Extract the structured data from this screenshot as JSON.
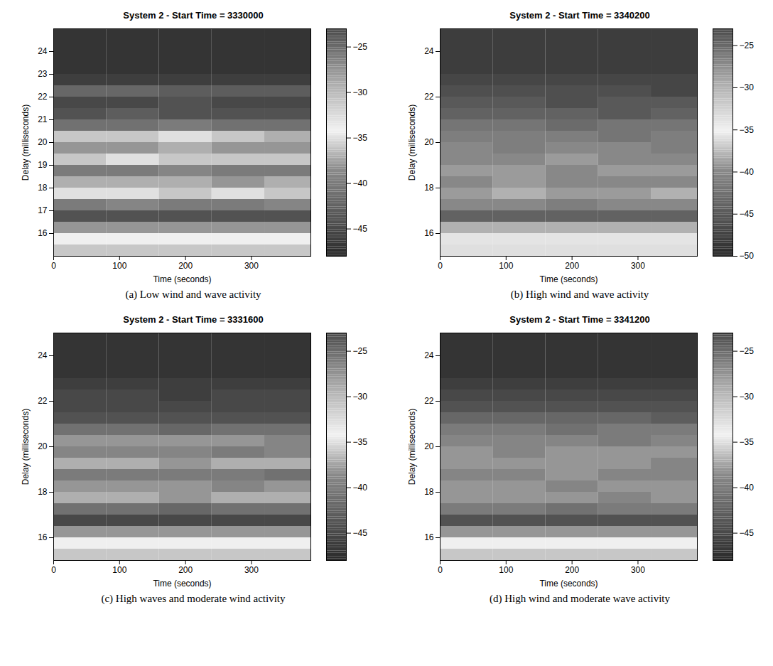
{
  "chart_data": [
    {
      "type": "heatmap",
      "title": "System 2 - Start Time = 3330000",
      "caption": "(a) Low wind and wave activity",
      "x_label": "Time (seconds)",
      "y_label": "Delay (milliseconds)",
      "xlim": [
        0,
        390
      ],
      "xticks": [
        0,
        100,
        200,
        300
      ],
      "ylim": [
        15,
        25
      ],
      "yticks": [
        16,
        17,
        18,
        19,
        20,
        21,
        22,
        23,
        24
      ],
      "x_bins": [
        0,
        80,
        160,
        240,
        320,
        390
      ],
      "y_bins": [
        15,
        15.5,
        16,
        16.5,
        17,
        17.5,
        18,
        18.5,
        19,
        19.5,
        20,
        20.5,
        21,
        21.5,
        22,
        22.5,
        23,
        23.5,
        24,
        24.5,
        25
      ],
      "cells": [
        [
          -36,
          -36,
          -36,
          -36,
          -36
        ],
        [
          -34,
          -34,
          -34,
          -34,
          -34
        ],
        [
          -38,
          -38,
          -38,
          -38,
          -38
        ],
        [
          -44,
          -44,
          -44,
          -44,
          -44
        ],
        [
          -40,
          -39,
          -40,
          -40,
          -39
        ],
        [
          -35,
          -35,
          -36,
          -35,
          -36
        ],
        [
          -37,
          -37,
          -37,
          -38,
          -37
        ],
        [
          -40,
          -40,
          -39,
          -40,
          -40
        ],
        [
          -36,
          -35,
          -36,
          -36,
          -36
        ],
        [
          -38,
          -38,
          -37,
          -38,
          -38
        ],
        [
          -36,
          -36,
          -35,
          -36,
          -37
        ],
        [
          -41,
          -41,
          -40,
          -41,
          -41
        ],
        [
          -44,
          -43,
          -44,
          -44,
          -44
        ],
        [
          -45,
          -45,
          -44,
          -45,
          -45
        ],
        [
          -42,
          -42,
          -43,
          -43,
          -43
        ],
        [
          -46,
          -46,
          -46,
          -46,
          -46
        ],
        [
          -47,
          -47,
          -47,
          -47,
          -47
        ],
        [
          -47,
          -47,
          -47,
          -47,
          -47
        ],
        [
          -47,
          -47,
          -47,
          -47,
          -47
        ],
        [
          -47,
          -47,
          -47,
          -47,
          -47
        ]
      ],
      "colorbar": {
        "range": [
          -48,
          -23
        ],
        "ticks": [
          -25,
          -30,
          -35,
          -40,
          -45
        ]
      }
    },
    {
      "type": "heatmap",
      "title": "System 2 - Start Time = 3340200",
      "caption": "(b) High wind and wave activity",
      "x_label": "Time (seconds)",
      "y_label": "Delay (milliseconds)",
      "xlim": [
        0,
        390
      ],
      "xticks": [
        0,
        100,
        200,
        300
      ],
      "ylim": [
        15,
        25
      ],
      "yticks": [
        16,
        18,
        20,
        22,
        24
      ],
      "x_bins": [
        0,
        80,
        160,
        240,
        320,
        390
      ],
      "y_bins": [
        15,
        15.5,
        16,
        16.5,
        17,
        17.5,
        18,
        18.5,
        19,
        19.5,
        20,
        20.5,
        21,
        21.5,
        22,
        22.5,
        23,
        23.5,
        24,
        24.5,
        25
      ],
      "cells": [
        [
          -36,
          -36,
          -36,
          -36,
          -36
        ],
        [
          -34,
          -34,
          -34,
          -34,
          -34
        ],
        [
          -38,
          -38,
          -38,
          -38,
          -38
        ],
        [
          -44,
          -44,
          -44,
          -44,
          -44
        ],
        [
          -40,
          -40,
          -41,
          -40,
          -40
        ],
        [
          -39,
          -38,
          -39,
          -39,
          -38
        ],
        [
          -40,
          -39,
          -40,
          -40,
          -40
        ],
        [
          -39,
          -39,
          -40,
          -39,
          -39
        ],
        [
          -40,
          -40,
          -39,
          -40,
          -40
        ],
        [
          -40,
          -41,
          -40,
          -40,
          -41
        ],
        [
          -41,
          -41,
          -41,
          -42,
          -41
        ],
        [
          -42,
          -42,
          -43,
          -42,
          -42
        ],
        [
          -44,
          -44,
          -44,
          -45,
          -44
        ],
        [
          -45,
          -45,
          -46,
          -45,
          -45
        ],
        [
          -46,
          -46,
          -46,
          -46,
          -47
        ],
        [
          -47,
          -47,
          -47,
          -47,
          -47
        ],
        [
          -48,
          -48,
          -48,
          -48,
          -48
        ],
        [
          -48,
          -48,
          -48,
          -48,
          -48
        ],
        [
          -48,
          -48,
          -48,
          -48,
          -48
        ],
        [
          -48,
          -48,
          -48,
          -48,
          -48
        ]
      ],
      "colorbar": {
        "range": [
          -50,
          -23
        ],
        "ticks": [
          -25,
          -30,
          -35,
          -40,
          -45,
          -50
        ]
      }
    },
    {
      "type": "heatmap",
      "title": "System 2 - Start Time = 3331600",
      "caption": "(c) High waves and moderate wind activity",
      "x_label": "Time (seconds)",
      "y_label": "Delay (milliseconds)",
      "xlim": [
        0,
        390
      ],
      "xticks": [
        0,
        100,
        200,
        300
      ],
      "ylim": [
        15,
        25
      ],
      "yticks": [
        16,
        18,
        20,
        22,
        24
      ],
      "x_bins": [
        0,
        80,
        160,
        240,
        320,
        390
      ],
      "y_bins": [
        15,
        15.5,
        16,
        16.5,
        17,
        17.5,
        18,
        18.5,
        19,
        19.5,
        20,
        20.5,
        21,
        21.5,
        22,
        22.5,
        23,
        23.5,
        24,
        24.5,
        25
      ],
      "cells": [
        [
          -36,
          -36,
          -36,
          -36,
          -36
        ],
        [
          -34,
          -34,
          -34,
          -34,
          -34
        ],
        [
          -38,
          -38,
          -38,
          -38,
          -38
        ],
        [
          -45,
          -45,
          -45,
          -45,
          -45
        ],
        [
          -41,
          -41,
          -42,
          -41,
          -41
        ],
        [
          -37,
          -37,
          -38,
          -37,
          -37
        ],
        [
          -38,
          -38,
          -38,
          -39,
          -38
        ],
        [
          -40,
          -40,
          -40,
          -40,
          -41
        ],
        [
          -37,
          -37,
          -38,
          -37,
          -37
        ],
        [
          -39,
          -39,
          -39,
          -40,
          -39
        ],
        [
          -38,
          -38,
          -38,
          -38,
          -39
        ],
        [
          -41,
          -41,
          -42,
          -41,
          -41
        ],
        [
          -44,
          -44,
          -44,
          -44,
          -44
        ],
        [
          -45,
          -45,
          -45,
          -45,
          -45
        ],
        [
          -45,
          -45,
          -46,
          -45,
          -45
        ],
        [
          -46,
          -46,
          -46,
          -46,
          -46
        ],
        [
          -47,
          -47,
          -47,
          -47,
          -47
        ],
        [
          -47,
          -47,
          -47,
          -47,
          -47
        ],
        [
          -47,
          -47,
          -47,
          -47,
          -47
        ],
        [
          -47,
          -47,
          -47,
          -47,
          -47
        ]
      ],
      "colorbar": {
        "range": [
          -48,
          -23
        ],
        "ticks": [
          -25,
          -30,
          -35,
          -40,
          -45
        ]
      }
    },
    {
      "type": "heatmap",
      "title": "System 2 - Start Time = 3341200",
      "caption": "(d) High wind and moderate wave activity",
      "x_label": "Time (seconds)",
      "y_label": "Delay (milliseconds)",
      "xlim": [
        0,
        390
      ],
      "xticks": [
        0,
        100,
        200,
        300
      ],
      "ylim": [
        15,
        25
      ],
      "yticks": [
        16,
        18,
        20,
        22,
        24
      ],
      "x_bins": [
        0,
        80,
        160,
        240,
        320,
        390
      ],
      "y_bins": [
        15,
        15.5,
        16,
        16.5,
        17,
        17.5,
        18,
        18.5,
        19,
        19.5,
        20,
        20.5,
        21,
        21.5,
        22,
        22.5,
        23,
        23.5,
        24,
        24.5,
        25
      ],
      "cells": [
        [
          -36,
          -36,
          -36,
          -36,
          -36
        ],
        [
          -34,
          -34,
          -34,
          -34,
          -34
        ],
        [
          -38,
          -38,
          -38,
          -38,
          -38
        ],
        [
          -44,
          -44,
          -44,
          -44,
          -44
        ],
        [
          -40,
          -40,
          -41,
          -40,
          -40
        ],
        [
          -38,
          -38,
          -38,
          -39,
          -38
        ],
        [
          -38,
          -38,
          -39,
          -38,
          -38
        ],
        [
          -39,
          -39,
          -38,
          -39,
          -39
        ],
        [
          -38,
          -38,
          -38,
          -38,
          -39
        ],
        [
          -38,
          -39,
          -38,
          -38,
          -38
        ],
        [
          -39,
          -39,
          -39,
          -40,
          -39
        ],
        [
          -40,
          -40,
          -41,
          -40,
          -40
        ],
        [
          -42,
          -42,
          -42,
          -42,
          -43
        ],
        [
          -44,
          -44,
          -44,
          -44,
          -44
        ],
        [
          -45,
          -45,
          -45,
          -45,
          -45
        ],
        [
          -46,
          -46,
          -46,
          -46,
          -46
        ],
        [
          -47,
          -47,
          -47,
          -47,
          -47
        ],
        [
          -47,
          -47,
          -47,
          -47,
          -47
        ],
        [
          -47,
          -47,
          -47,
          -47,
          -47
        ],
        [
          -47,
          -47,
          -47,
          -47,
          -47
        ]
      ],
      "colorbar": {
        "range": [
          -48,
          -23
        ],
        "ticks": [
          -25,
          -30,
          -35,
          -40,
          -45
        ]
      }
    }
  ]
}
